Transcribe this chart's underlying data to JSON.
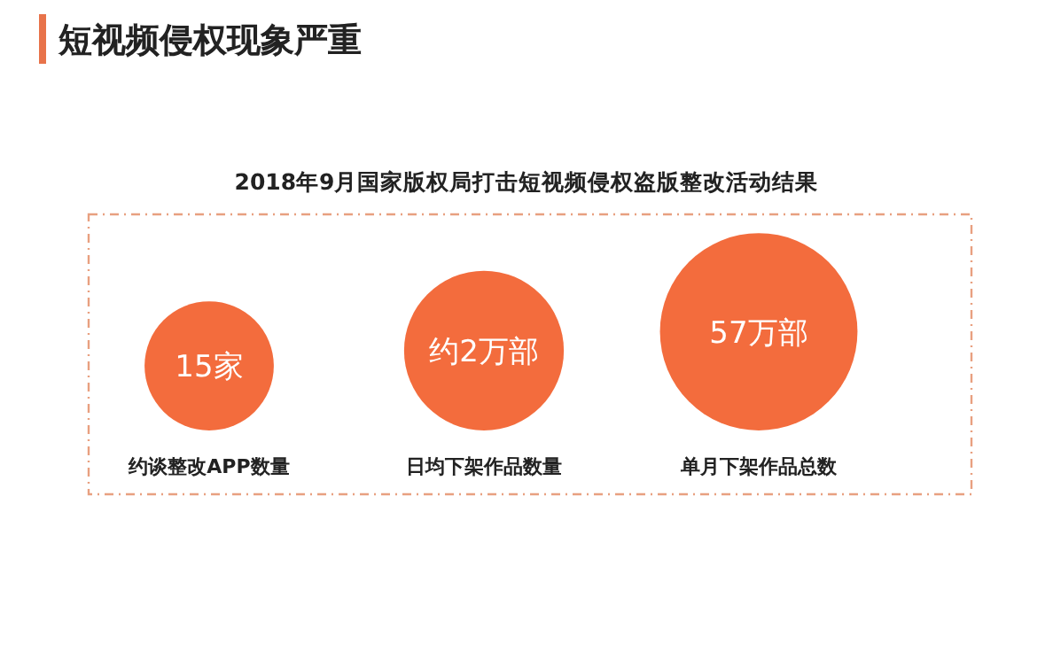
{
  "chart_data": {
    "type": "other",
    "title": "短视频侵权现象严重",
    "subtitle": "2018年9月国家版权局打击短视频侵权盗版整改活动结果",
    "categories": [
      "约谈整改APP数量",
      "日均下架作品数量",
      "单月下架作品总数"
    ],
    "values": [
      15,
      2,
      57
    ],
    "value_labels": [
      "15家",
      "约2万部",
      "57万部"
    ],
    "colors": [
      "#f36c3d",
      "#f36c3d",
      "#f36c3d"
    ]
  }
}
